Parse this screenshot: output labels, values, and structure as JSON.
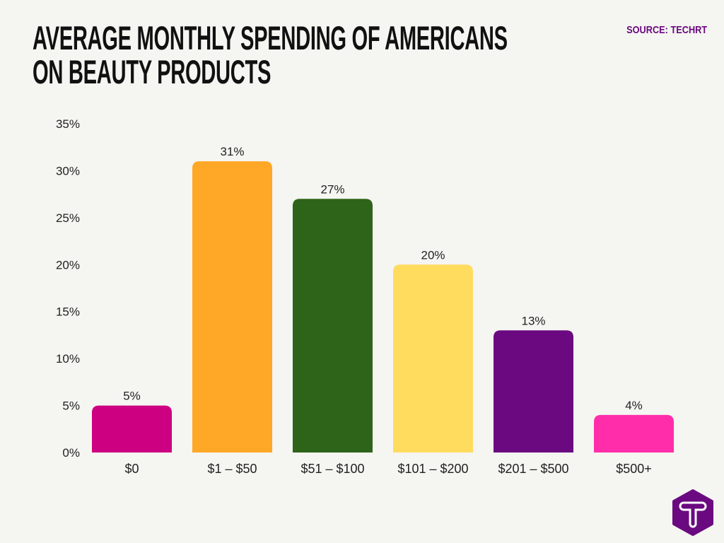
{
  "title_line1": "AVERAGE MONTHLY SPENDING OF AMERICANS",
  "title_line2": "ON BEAUTY PRODUCTS",
  "source": "SOURCE: TECHRT",
  "logo": {
    "letter": "T",
    "color": "#6b0a80"
  },
  "chart_data": {
    "type": "bar",
    "title": "AVERAGE MONTHLY SPENDING OF AMERICANS ON BEAUTY PRODUCTS",
    "categories": [
      "$0",
      "$1 – $50",
      "$51 – $100",
      "$101 – $200",
      "$201 – $500",
      "$500+"
    ],
    "values": [
      5,
      31,
      27,
      20,
      13,
      4
    ],
    "data_labels": [
      "5%",
      "31%",
      "27%",
      "20%",
      "13%",
      "4%"
    ],
    "colors": [
      "#cc0080",
      "#ffa726",
      "#2e6419",
      "#ffdc5e",
      "#6b0a80",
      "#ff2daa"
    ],
    "ylim": [
      0,
      35
    ],
    "yticks": [
      0,
      5,
      10,
      15,
      20,
      25,
      30,
      35
    ],
    "ytick_labels": [
      "0%",
      "5%",
      "10%",
      "15%",
      "20%",
      "25%",
      "30%",
      "35%"
    ],
    "xlabel": "",
    "ylabel": "",
    "grid": false,
    "legend": "none"
  }
}
